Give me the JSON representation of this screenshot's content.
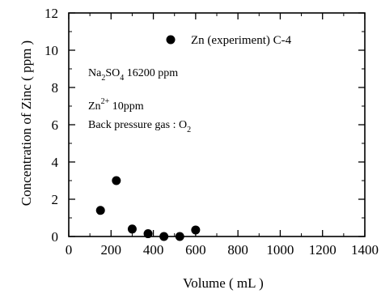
{
  "chart_data": {
    "type": "scatter",
    "xlabel": "Volume ( mL )",
    "ylabel": "Concentration of Zinc ( ppm )",
    "xlim": [
      0,
      1400
    ],
    "ylim": [
      0,
      12
    ],
    "xticks": [
      "0",
      "200",
      "400",
      "600",
      "800",
      "1000",
      "1200",
      "1400"
    ],
    "yticks": [
      "0",
      "2",
      "4",
      "6",
      "8",
      "10",
      "12"
    ],
    "grid": false,
    "series": [
      {
        "name": "Zn (experiment) C-4",
        "marker": "filled-circle",
        "color": "#000000",
        "points": [
          {
            "x": 150,
            "y": 1.4
          },
          {
            "x": 225,
            "y": 3.0
          },
          {
            "x": 300,
            "y": 0.4
          },
          {
            "x": 375,
            "y": 0.15
          },
          {
            "x": 450,
            "y": 0.0
          },
          {
            "x": 525,
            "y": 0.0
          },
          {
            "x": 600,
            "y": 0.35
          }
        ]
      }
    ],
    "legend": {
      "label": "Zn (experiment) C-4",
      "placement": "top-right",
      "marker": "filled-circle"
    },
    "annotations": {
      "salt": {
        "base": "Na",
        "sub1": "2",
        "mid": "SO",
        "sub2": "4",
        "tail": " 16200 ppm"
      },
      "zinc": {
        "base": "Zn",
        "sup": "2+",
        "tail": " 10ppm"
      },
      "gas": {
        "text": "Back pressure gas : O",
        "sub": "2"
      }
    }
  }
}
